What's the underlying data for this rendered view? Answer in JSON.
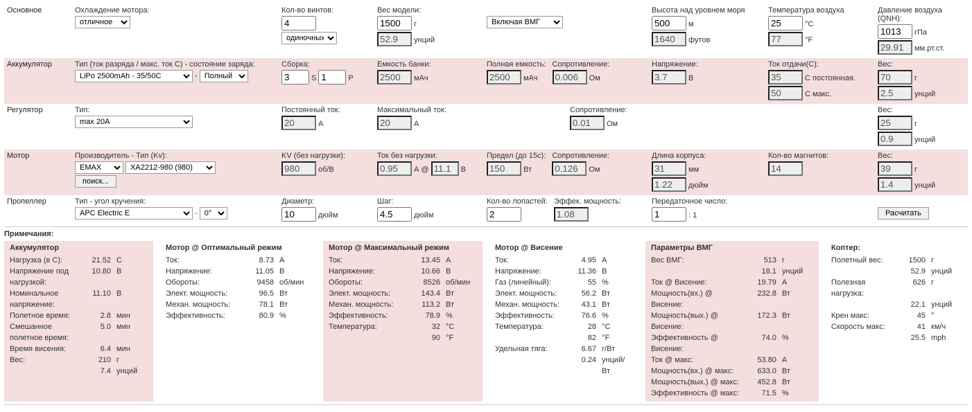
{
  "main": {
    "label": "Основное",
    "cooling": {
      "label": "Охлаждение мотора:",
      "value": "отличное"
    },
    "rotors": {
      "label": "Кол-во винтов:",
      "value": "4",
      "config": "одиночных"
    },
    "weight": {
      "label": "Вес модели:",
      "g": "1500",
      "oz": "52.9",
      "ug": "г",
      "uoz": "унций"
    },
    "incl": {
      "value": "Включая ВМГ"
    },
    "elev": {
      "label": "Высота над уровнем моря",
      "m": "500",
      "ft": "1640",
      "um": "м",
      "uft": "футов"
    },
    "temp": {
      "label": "Температура воздуха",
      "c": "25",
      "f": "77",
      "uc": "°C",
      "uf": "°F"
    },
    "press": {
      "label": "Давление воздуха (QNH):",
      "hpa": "1013",
      "mm": "29.91",
      "uhpa": "гПа",
      "umm": "мм.рт.ст."
    }
  },
  "bat": {
    "label": "Аккумулятор",
    "type": {
      "label": "Тип (ток разряда / макс. ток С) - состояние заряда:",
      "value": "LiPo 2500mAh - 35/50C",
      "state": "Полный"
    },
    "conf": {
      "label": "Сборка:",
      "s": "3",
      "us": "S",
      "p": "1",
      "up": "P"
    },
    "cap": {
      "label": "Емкость банки:",
      "v": "2500",
      "u": "мАч"
    },
    "tcap": {
      "label": "Полная емкость:",
      "v": "2500",
      "u": "мАч"
    },
    "res": {
      "label": "Сопротивление:",
      "v": "0.006",
      "u": "Ом"
    },
    "volt": {
      "label": "Напряжение:",
      "v": "3.7",
      "u": "В"
    },
    "crate": {
      "label": "Ток отдачи(С):",
      "cont": "35",
      "max": "50",
      "ucont": "С постоянная.",
      "umax": "С макс."
    },
    "weight": {
      "label": "Вес:",
      "g": "70",
      "oz": "2.5",
      "ug": "г",
      "uoz": "унций"
    }
  },
  "esc": {
    "label": "Регулятор",
    "type": {
      "label": "Тип:",
      "value": "max 20A"
    },
    "cont": {
      "label": "Постоянный ток:",
      "v": "20",
      "u": "А"
    },
    "max": {
      "label": "Максимальный ток:",
      "v": "20",
      "u": "А"
    },
    "res": {
      "label": "Сопротивление:",
      "v": "0.01",
      "u": "Ом"
    },
    "weight": {
      "label": "Вес:",
      "g": "25",
      "oz": "0.9",
      "ug": "г",
      "uoz": "унций"
    }
  },
  "mot": {
    "label": "Мотор",
    "type": {
      "label": "Производитель - Тип (Kv):",
      "mfr": "EMAX",
      "model": "XA2212-980 (980)",
      "search": "поиск..."
    },
    "kv": {
      "label": "KV (без нагрузки):",
      "v": "980",
      "u": "об/В"
    },
    "noload": {
      "label": "Ток без нагрузки:",
      "i": "0.95",
      "ui": "А @",
      "v": "11.1",
      "uv": "В"
    },
    "limit": {
      "label": "Предел (до 15с):",
      "v": "150",
      "u": "Вт"
    },
    "res": {
      "label": "Сопротивление:",
      "v": "0.126",
      "u": "Ом"
    },
    "len": {
      "label": "Длина корпуса:",
      "mm": "31",
      "in": "1.22",
      "umm": "мм",
      "uin": "дюйм"
    },
    "poles": {
      "label": "Кол-во магнитов:",
      "v": "14"
    },
    "weight": {
      "label": "Вес:",
      "g": "39",
      "oz": "1.4",
      "ug": "г",
      "uoz": "унций"
    }
  },
  "prop": {
    "label": "Пропеллер",
    "type": {
      "label": "Тип - угол кручения:",
      "value": "APC Electric E",
      "twist": "0°"
    },
    "dia": {
      "label": "Диаметр:",
      "v": "10",
      "u": "дюйм"
    },
    "pitch": {
      "label": "Шаг:",
      "v": "4.5",
      "u": "дюйм"
    },
    "blades": {
      "label": "Кол-во лопастей:",
      "v": "2"
    },
    "pconst": {
      "label": "Эффек. мощность:",
      "v": "1.08"
    },
    "gear": {
      "label": "Передаточное число:",
      "v": "1",
      "u": ": 1"
    },
    "calc": "Расчитать"
  },
  "notes": "Примечания:",
  "res": {
    "bat": {
      "title": "Аккумулятор",
      "rows": [
        [
          "Нагрузка (в С):",
          "21.52",
          "С"
        ],
        [
          "Напряжение под нагрузкой:",
          "10.80",
          "В"
        ],
        [
          "Номинальное напряжение:",
          "11.10",
          "В"
        ],
        [
          "Полетное время:",
          "2.8",
          "мин"
        ],
        [
          "Смешанное полетное время:",
          "5.0",
          "мин"
        ],
        [
          "Время висения:",
          "6.4",
          "мин"
        ],
        [
          "Вес:",
          "210",
          "г"
        ],
        [
          "",
          "7.4",
          "унций"
        ]
      ]
    },
    "opt": {
      "title": "Мотор @ Оптимальный режим",
      "rows": [
        [
          "Ток:",
          "8.73",
          "А"
        ],
        [
          "Напряжение:",
          "11.05",
          "В"
        ],
        [
          "Обороты:",
          "9458",
          "об/мин"
        ],
        [
          "Элект. мощность:",
          "96.5",
          "Вт"
        ],
        [
          "Механ. мощность:",
          "78.1",
          "Вт"
        ],
        [
          "Эффективность:",
          "80.9",
          "%"
        ]
      ]
    },
    "max": {
      "title": "Мотор @ Максимальный режим",
      "rows": [
        [
          "Ток:",
          "13.45",
          "А"
        ],
        [
          "Напряжение:",
          "10.66",
          "В"
        ],
        [
          "Обороты:",
          "8526",
          "об/мин"
        ],
        [
          "Элект. мощность:",
          "143.4",
          "Вт"
        ],
        [
          "Механ. мощность:",
          "113.2",
          "Вт"
        ],
        [
          "Эффективность:",
          "78.9",
          "%"
        ],
        [
          "Температура:",
          "32",
          "°C"
        ],
        [
          "",
          "90",
          "°F"
        ]
      ]
    },
    "hov": {
      "title": "Мотор @ Висение",
      "rows": [
        [
          "Ток:",
          "4.95",
          "А"
        ],
        [
          "Напряжение:",
          "11.36",
          "В"
        ],
        [
          "Газ (линейный):",
          "55",
          "%"
        ],
        [
          "Элект. мощность:",
          "56.2",
          "Вт"
        ],
        [
          "Механ. мощность:",
          "43.1",
          "Вт"
        ],
        [
          "Эффективность:",
          "76.6",
          "%"
        ],
        [
          "Температура:",
          "28",
          "°C"
        ],
        [
          "",
          "82",
          "°F"
        ],
        [
          "Удельная тяга:",
          "6.67",
          "г/Вт"
        ],
        [
          "",
          "0.24",
          "унций/Вт"
        ]
      ]
    },
    "drive": {
      "title": "Параметры ВМГ",
      "rows": [
        [
          "Вес ВМГ:",
          "513",
          "г"
        ],
        [
          "",
          "18.1",
          "унций"
        ],
        [
          "Ток @ Висение:",
          "19.79",
          "А"
        ],
        [
          "Мощность(вх.) @ Висение:",
          "232.8",
          "Вт"
        ],
        [
          "Мощность(вых.) @ Висение:",
          "172.3",
          "Вт"
        ],
        [
          "Эффективность @ Висение:",
          "74.0",
          "%"
        ],
        [
          "Ток @ макс:",
          "53.80",
          "А"
        ],
        [
          "Мощность(вх.) @ макс:",
          "633.0",
          "Вт"
        ],
        [
          "Мощность(вых.) @ макс:",
          "452.8",
          "Вт"
        ],
        [
          "Эффективность @ макс:",
          "71.5",
          "%"
        ]
      ]
    },
    "copter": {
      "title": "Коптер:",
      "rows": [
        [
          "Полетный вес:",
          "1500",
          "г"
        ],
        [
          "",
          "52.9",
          "унций"
        ],
        [
          "Полезная нагрузка:",
          "626",
          "г"
        ],
        [
          "",
          "22.1",
          "унций"
        ],
        [
          "Крен макс:",
          "45",
          "°"
        ],
        [
          "Скорость макс:",
          "41",
          "км/ч"
        ],
        [
          "",
          "25.5",
          "mph"
        ]
      ]
    }
  }
}
